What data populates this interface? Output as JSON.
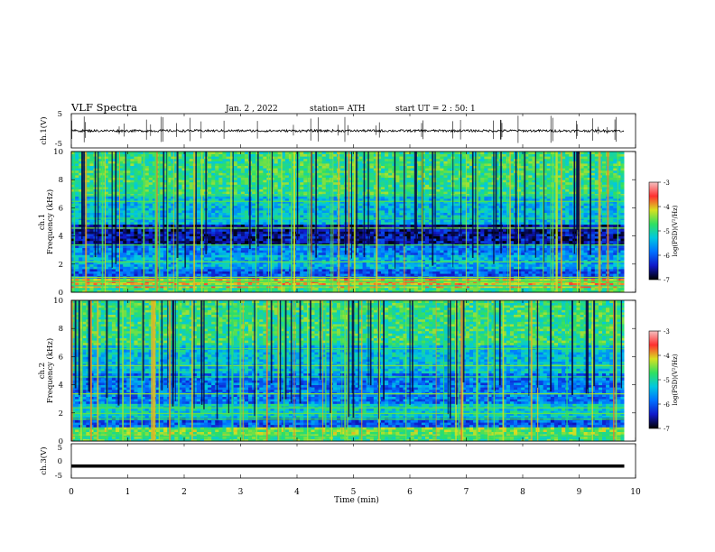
{
  "header": {
    "title": "VLF  Spectra",
    "date": "Jan.  2  , 2022",
    "station": "station= ATH",
    "start": "start  UT  =   2  : 50: 1"
  },
  "chart_data": [
    {
      "type": "line",
      "name": "ch1-waveform",
      "ylabel": "ch.1(V)",
      "ylim": [
        -5,
        5
      ],
      "yticks": [
        "5",
        "-5"
      ],
      "xlim": [
        0,
        10
      ],
      "baseline": 0,
      "color": "#000000"
    },
    {
      "type": "heatmap",
      "name": "ch1-spectrogram",
      "ylabel": "ch.1\nFrequency  (kHz)",
      "ylim": [
        0,
        10
      ],
      "yticks": [
        "0",
        "2",
        "4",
        "6",
        "8",
        "10"
      ],
      "xlim": [
        0,
        9.8
      ],
      "colorbar": {
        "label": "log(PSD)(V²/Hz)",
        "range": [
          -7,
          -3
        ],
        "ticks": [
          "-3",
          "-4",
          "-5",
          "-6",
          "-7"
        ],
        "colors": [
          "#000000",
          "#1018c8",
          "#0070ff",
          "#00c8e0",
          "#30e060",
          "#d8e020",
          "#ff3030",
          "#f4c0c0"
        ]
      }
    },
    {
      "type": "heatmap",
      "name": "ch2-spectrogram",
      "ylabel": "ch.2\nFrequency  (kHz)",
      "ylim": [
        0,
        10
      ],
      "yticks": [
        "0",
        "2",
        "4",
        "6",
        "8",
        "10"
      ],
      "xlim": [
        0,
        9.8
      ],
      "colorbar": {
        "label": "log(PSD)(V²/Hz)",
        "range": [
          -7,
          -3
        ],
        "ticks": [
          "-3",
          "-4",
          "-5",
          "-6",
          "-7"
        ],
        "colors": [
          "#000000",
          "#1018c8",
          "#0070ff",
          "#00c8e0",
          "#30e060",
          "#d8e020",
          "#ff3030",
          "#f4c0c0"
        ]
      }
    },
    {
      "type": "line",
      "name": "ch3-waveform",
      "ylabel": "ch.3(V)",
      "ylim": [
        -5,
        5
      ],
      "yticks": [
        "5",
        "0",
        "-5"
      ],
      "xlim": [
        0,
        9.8
      ],
      "baseline": -1.5,
      "color": "#000000"
    }
  ],
  "xaxis": {
    "label": "Time  (min)",
    "ticks": [
      "0",
      "1",
      "2",
      "3",
      "4",
      "5",
      "6",
      "7",
      "8",
      "9",
      "10"
    ],
    "range": [
      0,
      10
    ]
  }
}
